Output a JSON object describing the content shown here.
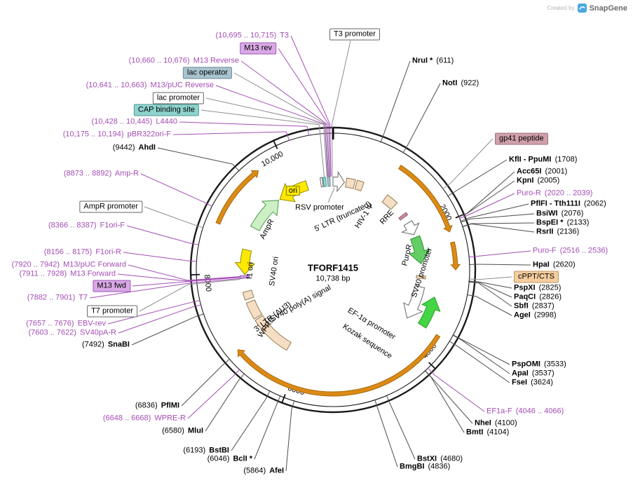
{
  "watermark": {
    "created_by": "Created by",
    "brand": "SnapGene"
  },
  "plasmid": {
    "name": "TFORF1415",
    "size": "10,738 bp"
  },
  "tick_labels": [
    "2000",
    "4000",
    "6000",
    "8000",
    "10,000"
  ],
  "colors": {
    "primer": "#A44DB5",
    "enzyme_line": "#4d4d4d",
    "feature_line": "#8f8f8f",
    "circle": "#1a1a1a",
    "orange": "#DB8A16",
    "orange_stroke": "#A96A08",
    "tan": "#F5DEC3",
    "tan_stroke": "#957D52",
    "yellow": "#FFE800",
    "yellow_stroke": "#8F8A00",
    "green_pale": "#CDEFC4",
    "green_pale_stroke": "#4E9A4E",
    "green": "#63CE63",
    "green_stroke": "#2F8F2F",
    "green_bright": "#44D544",
    "green_bright_stroke": "#1F9F1F",
    "white_feature": "#FFFFFF",
    "white_stroke": "#666666",
    "rose": "#C98D9B",
    "rose_stroke": "#99606E",
    "teal": "#8FD3CE",
    "teal_stroke": "#4E9A94",
    "bluegray": "#A8C4CE",
    "bluegray_stroke": "#6C8894",
    "purple_box": "#C9A0DC",
    "purple_box_stroke": "#9B59B6"
  },
  "site_labels": [
    {
      "loc": "(10,695 .. 10,715)",
      "name": "T3",
      "kind": "primer"
    },
    {
      "loc": "(10,660 .. 10,676)",
      "name": "M13 Reverse",
      "kind": "primer"
    },
    {
      "loc": "(10,641 .. 10,663)",
      "name": "M13/pUC Reverse",
      "kind": "primer"
    },
    {
      "loc": "(10,428 .. 10,445)",
      "name": "L4440",
      "kind": "primer"
    },
    {
      "loc": "(10,175 .. 10,194)",
      "name": "pBR322ori-F",
      "kind": "primer"
    },
    {
      "loc": "(9442)",
      "name": "AhdI",
      "kind": "enzyme"
    },
    {
      "loc": "(8873 .. 8892)",
      "name": "Amp-R",
      "kind": "primer"
    },
    {
      "loc": "(8366 .. 8387)",
      "name": "F1ori-F",
      "kind": "primer"
    },
    {
      "loc": "(8156 .. 8175)",
      "name": "F1ori-R",
      "kind": "primer"
    },
    {
      "loc": "(7920 .. 7942)",
      "name": "M13/pUC Forward",
      "kind": "primer"
    },
    {
      "loc": "(7911 .. 7928)",
      "name": "M13 Forward",
      "kind": "primer"
    },
    {
      "loc": "(7882 .. 7901)",
      "name": "T7",
      "kind": "primer"
    },
    {
      "loc": "(7657 .. 7676)",
      "name": "EBV-rev",
      "kind": "primer"
    },
    {
      "loc": "(7603 .. 7622)",
      "name": "SV40pA-R",
      "kind": "primer"
    },
    {
      "loc": "(7492)",
      "name": "SnaBI",
      "kind": "enzyme"
    },
    {
      "loc": "(6836)",
      "name": "PflMI",
      "kind": "enzyme"
    },
    {
      "loc": "(6648 .. 6668)",
      "name": "WPRE-R",
      "kind": "primer"
    },
    {
      "loc": "(6580)",
      "name": "MluI",
      "kind": "enzyme"
    },
    {
      "loc": "(6193)",
      "name": "BstBI",
      "kind": "enzyme"
    },
    {
      "loc": "(6046)",
      "name": "BclI *",
      "kind": "enzyme"
    },
    {
      "loc": "(5864)",
      "name": "AfeI",
      "kind": "enzyme"
    },
    {
      "loc": "(4836)",
      "name": "BmgBI",
      "kind": "enzyme"
    },
    {
      "loc": "(4680)",
      "name": "BstXI",
      "kind": "enzyme"
    },
    {
      "loc": "(4104)",
      "name": "BmtI",
      "kind": "enzyme"
    },
    {
      "loc": "(4100)",
      "name": "NheI",
      "kind": "enzyme"
    },
    {
      "loc": "(4046 .. 4066)",
      "name": "EF1a-F",
      "kind": "primer"
    },
    {
      "loc": "(3624)",
      "name": "FseI",
      "kind": "enzyme"
    },
    {
      "loc": "(3537)",
      "name": "ApaI",
      "kind": "enzyme"
    },
    {
      "loc": "(3533)",
      "name": "PspOMI",
      "kind": "enzyme"
    },
    {
      "loc": "(2998)",
      "name": "AgeI",
      "kind": "enzyme"
    },
    {
      "loc": "(2837)",
      "name": "SbfI",
      "kind": "enzyme"
    },
    {
      "loc": "(2826)",
      "name": "PaqCI",
      "kind": "enzyme"
    },
    {
      "loc": "(2825)",
      "name": "PspXI",
      "kind": "enzyme"
    },
    {
      "loc": "(2620)",
      "name": "HpaI",
      "kind": "enzyme"
    },
    {
      "loc": "(2516 .. 2536)",
      "name": "Puro-F",
      "kind": "primer"
    },
    {
      "loc": "(2136)",
      "name": "RsrII",
      "kind": "enzyme"
    },
    {
      "loc": "(2133)",
      "name": "BspEI *",
      "kind": "enzyme"
    },
    {
      "loc": "(2076)",
      "name": "BsiWI",
      "kind": "enzyme"
    },
    {
      "loc": "(2062)",
      "name": "PflFI - Tth111I",
      "kind": "enzyme"
    },
    {
      "loc": "(2020 .. 2039)",
      "name": "Puro-R",
      "kind": "primer"
    },
    {
      "loc": "(2005)",
      "name": "KpnI",
      "kind": "enzyme"
    },
    {
      "loc": "(2001)",
      "name": "Acc65I",
      "kind": "enzyme"
    },
    {
      "loc": "(1708)",
      "name": "KflI - PpuMI",
      "kind": "enzyme"
    },
    {
      "loc": "(922)",
      "name": "NotI",
      "kind": "enzyme"
    },
    {
      "loc": "(611)",
      "name": "NruI *",
      "kind": "enzyme"
    }
  ],
  "boxed_labels": [
    {
      "text": "T3 promoter",
      "kind": "feature",
      "fill": "#FFFFFF",
      "border": "#666666"
    },
    {
      "text": "M13 rev",
      "kind": "primer",
      "fill": "#D9A9E6",
      "border": "#9B59B6"
    },
    {
      "text": "lac operator",
      "kind": "feature",
      "fill": "#A8C4CE",
      "border": "#6C8894"
    },
    {
      "text": "lac promoter",
      "kind": "feature",
      "fill": "#FFFFFF",
      "border": "#666666"
    },
    {
      "text": "CAP binding site",
      "kind": "feature",
      "fill": "#8FD3CE",
      "border": "#4E9A94"
    },
    {
      "text": "AmpR promoter",
      "kind": "feature",
      "fill": "#FFFFFF",
      "border": "#666666"
    },
    {
      "text": "M13 fwd",
      "kind": "primer",
      "fill": "#D9A9E6",
      "border": "#9B59B6"
    },
    {
      "text": "T7 promoter",
      "kind": "feature",
      "fill": "#FFFFFF",
      "border": "#666666"
    },
    {
      "text": "gp41 peptide",
      "kind": "feature",
      "fill": "#CFA0AB",
      "border": "#9E6F79"
    },
    {
      "text": "cPPT/CTS",
      "kind": "feature",
      "fill": "#F5CD9F",
      "border": "#C29460"
    }
  ],
  "feature_labels": [
    "ori",
    "RSV promoter",
    "5' LTR (truncated)",
    "HIV-1 Ψ",
    "RRE",
    "AmpR",
    "f1 ori",
    "SV40 ori",
    "SV40 poly(A) signal",
    "3' LTR (ΔU3)",
    "WPRE",
    "PuroR",
    "SV40 promoter",
    "EF-1α promoter",
    "Kozak sequence"
  ]
}
